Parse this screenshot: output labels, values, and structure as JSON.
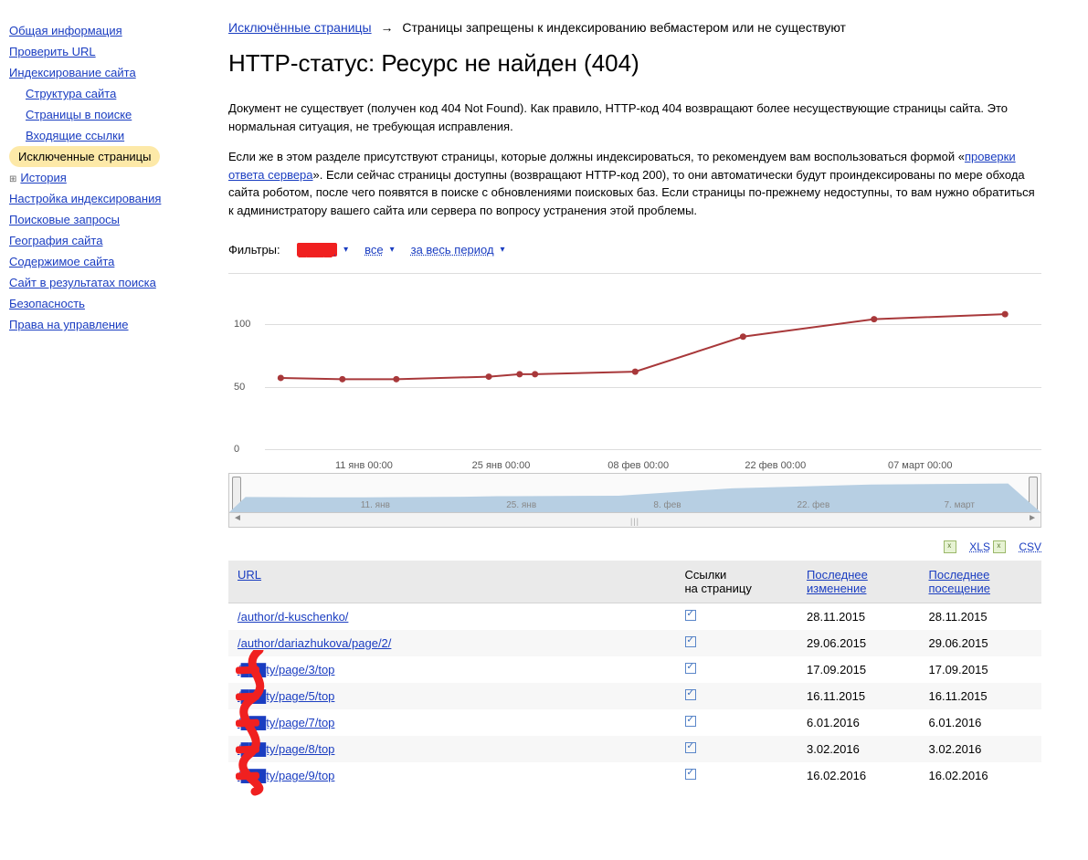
{
  "sidebar": {
    "items": [
      {
        "label": "Общая информация",
        "indent": 0
      },
      {
        "label": "Проверить URL",
        "indent": 0
      },
      {
        "label": "Индексирование сайта",
        "indent": 0
      },
      {
        "label": "Структура сайта",
        "indent": 1
      },
      {
        "label": "Страницы в поиске",
        "indent": 1
      },
      {
        "label": "Входящие ссылки",
        "indent": 1
      },
      {
        "label": "Исключенные страницы",
        "indent": 1,
        "active": true
      },
      {
        "label": "История",
        "indent": 0,
        "plus": true
      },
      {
        "label": "Настройка индексирования",
        "indent": 0
      },
      {
        "label": "Поисковые запросы",
        "indent": 0
      },
      {
        "label": "География сайта",
        "indent": 0
      },
      {
        "label": "Содержимое сайта",
        "indent": 0
      },
      {
        "label": "Сайт в результатах поиска",
        "indent": 0
      },
      {
        "label": "Безопасность",
        "indent": 0
      },
      {
        "label": "Права на управление",
        "indent": 0
      }
    ]
  },
  "breadcrumb": {
    "link": "Исключённые страницы",
    "arrow": "→",
    "tail": "Страницы запрещены к индексированию вебмастером или не существуют"
  },
  "heading": "HTTP-статус: Ресурс не найден (404)",
  "para1": "Документ не существует (получен код 404 Not Found). Как правило, HTTP-код 404 возвращают более несуществующие страницы сайта. Это нормальная ситуация, не требующая исправления.",
  "para2_a": "Если же в этом разделе присутствуют страницы, которые должны индексироваться, то рекомендуем вам воспользоваться формой «",
  "para2_link": "проверки ответа сервера",
  "para2_b": "». Если сейчас страницы доступны (возвращают HTTP-код 200), то они автоматически будут проиндексированы по мере обхода сайта роботом, после чего появятся в поиске с обновлениями поисковых баз. Если страницы по-прежнему недоступны, то вам нужно обратиться к администратору вашего сайта или сервера по вопросу устранения этой проблемы.",
  "filters": {
    "label": "Фильтры:",
    "site_redacted": "████/",
    "all": "все",
    "period": "за весь период"
  },
  "chart": {
    "type": "line",
    "line_color": "#a8383a",
    "point_color": "#a8383a",
    "line_width": 2,
    "point_radius": 3.5,
    "grid_color": "#dddddd",
    "background_color": "#ffffff",
    "y_ticks": [
      0,
      50,
      100
    ],
    "y_tick_labels": [
      "0",
      "50",
      "100"
    ],
    "ylim": [
      0,
      130
    ],
    "x_tick_labels": [
      "11 янв 00:00",
      "25 янв 00:00",
      "08 фев 00:00",
      "22 фев 00:00",
      "07 март 00:00"
    ],
    "x_tick_positions": [
      0.13,
      0.31,
      0.49,
      0.67,
      0.86
    ],
    "points": [
      {
        "x": 0.02,
        "y": 57
      },
      {
        "x": 0.1,
        "y": 56
      },
      {
        "x": 0.17,
        "y": 56
      },
      {
        "x": 0.29,
        "y": 58
      },
      {
        "x": 0.33,
        "y": 60
      },
      {
        "x": 0.35,
        "y": 60
      },
      {
        "x": 0.48,
        "y": 62
      },
      {
        "x": 0.62,
        "y": 90
      },
      {
        "x": 0.79,
        "y": 104
      },
      {
        "x": 0.96,
        "y": 108
      }
    ]
  },
  "brush": {
    "area_color": "#b7cfe3",
    "x_labels": [
      "11. янв",
      "25. янв",
      "8. фев",
      "22. фев",
      "7. март"
    ],
    "x_positions": [
      0.18,
      0.36,
      0.54,
      0.72,
      0.9
    ]
  },
  "export": {
    "xls": "XLS",
    "csv": "CSV"
  },
  "table": {
    "headers": {
      "url": "URL",
      "links_l1": "Ссылки",
      "links_l2": "на страницу",
      "mod_l1": "Последнее",
      "mod_l2": "изменение",
      "visit_l1": "Последнее",
      "visit_l2": "посещение"
    },
    "rows": [
      {
        "url": "/author/d-kuschenko/",
        "redact": false,
        "mod": "28.11.2015",
        "visit": "28.11.2015"
      },
      {
        "url": "/author/dariazhukova/page/2/",
        "redact": false,
        "mod": "29.06.2015",
        "visit": "29.06.2015"
      },
      {
        "url": "/███ty/page/3/top",
        "redact": true,
        "mod": "17.09.2015",
        "visit": "17.09.2015"
      },
      {
        "url": "/███ty/page/5/top",
        "redact": true,
        "mod": "16.11.2015",
        "visit": "16.11.2015"
      },
      {
        "url": "/███ty/page/7/top",
        "redact": true,
        "mod": "6.01.2016",
        "visit": "6.01.2016"
      },
      {
        "url": "/███ty/page/8/top",
        "redact": true,
        "mod": "3.02.2016",
        "visit": "3.02.2016"
      },
      {
        "url": "/███ty/page/9/top",
        "redact": true,
        "mod": "16.02.2016",
        "visit": "16.02.2016"
      }
    ]
  },
  "colors": {
    "link": "#1a3dc1",
    "active_bg": "#fde9a8",
    "redaction": "#f02020"
  }
}
